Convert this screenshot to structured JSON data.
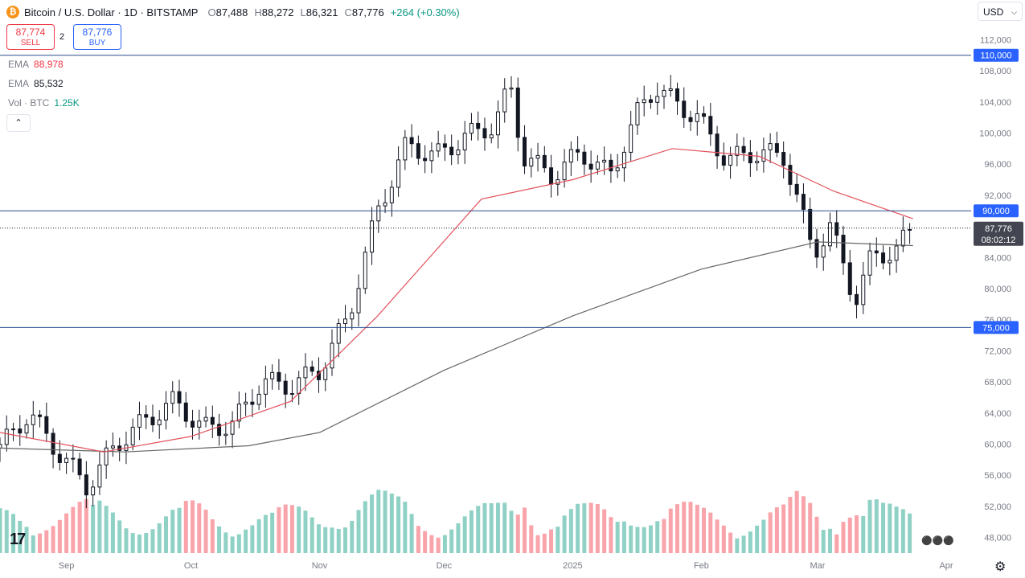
{
  "header": {
    "title": "Bitcoin / U.S. Dollar · 1D · BITSTAMP",
    "coin_symbol": "₿",
    "o_label": "O",
    "o": "87,488",
    "h_label": "H",
    "h": "88,272",
    "l_label": "L",
    "l": "86,321",
    "c_label": "C",
    "c": "87,776",
    "change": "+264 (+0.30%)"
  },
  "trade": {
    "sell_price": "87,774",
    "sell_label": "SELL",
    "spread": "2",
    "buy_price": "87,776",
    "buy_label": "BUY"
  },
  "indicators": [
    {
      "name": "EMA",
      "value": "88,978",
      "color": "#f23645"
    },
    {
      "name": "EMA",
      "value": "85,532",
      "color": "#131722"
    },
    {
      "name": "Vol · BTC",
      "value": "1.25K",
      "color": "#089981"
    }
  ],
  "collapse_glyph": "⌃",
  "currency": "USD",
  "logo_text": "17",
  "colors": {
    "up": "#089981",
    "down": "#f23645",
    "level_line": "#2a4f8f",
    "ema50": "#e2505a",
    "ema200": "#666666"
  },
  "chart_data": {
    "type": "candlestick",
    "instrument": "Bitcoin / U.S. Dollar",
    "interval": "1D",
    "exchange": "BITSTAMP",
    "ylim": [
      46000,
      114000
    ],
    "y_ticks": [
      "112,000",
      "108,000",
      "104,000",
      "100,000",
      "96,000",
      "92,000",
      "84,000",
      "80,000",
      "76,000",
      "72,000",
      "68,000",
      "64,000",
      "60,000",
      "56,000",
      "52,000",
      "48,000"
    ],
    "x_ticks": [
      {
        "label": "Sep",
        "date": "2024-09-01"
      },
      {
        "label": "Oct",
        "date": "2024-10-01"
      },
      {
        "label": "Nov",
        "date": "2024-11-01"
      },
      {
        "label": "Dec",
        "date": "2024-12-01"
      },
      {
        "label": "2025",
        "date": "2025-01-01"
      },
      {
        "label": "Feb",
        "date": "2025-02-01"
      },
      {
        "label": "Mar",
        "date": "2025-03-01"
      },
      {
        "label": "Apr",
        "date": "2025-04-01"
      }
    ],
    "x_range": [
      "2024-08-16",
      "2025-04-07"
    ],
    "horizontal_levels": [
      {
        "value": 110000,
        "label": "110,000"
      },
      {
        "value": 90000,
        "label": "90,000"
      },
      {
        "value": 75000,
        "label": "75,000"
      }
    ],
    "last_price": {
      "value": 87776,
      "label": "87,776",
      "countdown": "08:02:12"
    },
    "closes_weekly": [
      {
        "date": "2024-08-16",
        "close": 59500
      },
      {
        "date": "2024-08-23",
        "close": 64000
      },
      {
        "date": "2024-08-30",
        "close": 59000
      },
      {
        "date": "2024-09-06",
        "close": 54500
      },
      {
        "date": "2024-09-13",
        "close": 60000
      },
      {
        "date": "2024-09-20",
        "close": 63000
      },
      {
        "date": "2024-09-27",
        "close": 65500
      },
      {
        "date": "2024-10-04",
        "close": 62000
      },
      {
        "date": "2024-10-11",
        "close": 62500
      },
      {
        "date": "2024-10-18",
        "close": 68000
      },
      {
        "date": "2024-10-25",
        "close": 67500
      },
      {
        "date": "2024-11-01",
        "close": 69500
      },
      {
        "date": "2024-11-08",
        "close": 76500
      },
      {
        "date": "2024-11-15",
        "close": 90000
      },
      {
        "date": "2024-11-22",
        "close": 98500
      },
      {
        "date": "2024-11-29",
        "close": 97000
      },
      {
        "date": "2024-12-06",
        "close": 99500
      },
      {
        "date": "2024-12-13",
        "close": 101000
      },
      {
        "date": "2024-12-17",
        "close": 106000
      },
      {
        "date": "2024-12-20",
        "close": 97000
      },
      {
        "date": "2024-12-27",
        "close": 94500
      },
      {
        "date": "2025-01-03",
        "close": 97500
      },
      {
        "date": "2025-01-10",
        "close": 94500
      },
      {
        "date": "2025-01-17",
        "close": 103000
      },
      {
        "date": "2025-01-21",
        "close": 106000
      },
      {
        "date": "2025-01-24",
        "close": 104500
      },
      {
        "date": "2025-01-31",
        "close": 102000
      },
      {
        "date": "2025-02-07",
        "close": 96500
      },
      {
        "date": "2025-02-14",
        "close": 97500
      },
      {
        "date": "2025-02-21",
        "close": 97000
      },
      {
        "date": "2025-02-28",
        "close": 84500
      },
      {
        "date": "2025-03-04",
        "close": 88000
      },
      {
        "date": "2025-03-10",
        "close": 78500
      },
      {
        "date": "2025-03-14",
        "close": 84000
      },
      {
        "date": "2025-03-20",
        "close": 85000
      },
      {
        "date": "2025-03-24",
        "close": 87776
      }
    ],
    "ema_slow": [
      {
        "date": "2024-08-16",
        "value": 59500
      },
      {
        "date": "2024-09-15",
        "value": 59000
      },
      {
        "date": "2024-10-15",
        "value": 59800
      },
      {
        "date": "2024-11-01",
        "value": 61500
      },
      {
        "date": "2024-12-01",
        "value": 69500
      },
      {
        "date": "2025-01-01",
        "value": 76500
      },
      {
        "date": "2025-02-01",
        "value": 82500
      },
      {
        "date": "2025-03-01",
        "value": 86000
      },
      {
        "date": "2025-03-24",
        "value": 85532
      }
    ],
    "ema_fast": [
      {
        "date": "2024-08-16",
        "value": 61500
      },
      {
        "date": "2024-09-10",
        "value": 59000
      },
      {
        "date": "2024-10-01",
        "value": 61000
      },
      {
        "date": "2024-10-25",
        "value": 65500
      },
      {
        "date": "2024-11-15",
        "value": 76500
      },
      {
        "date": "2024-12-10",
        "value": 91500
      },
      {
        "date": "2025-01-01",
        "value": 94000
      },
      {
        "date": "2025-01-25",
        "value": 98000
      },
      {
        "date": "2025-02-15",
        "value": 97000
      },
      {
        "date": "2025-03-05",
        "value": 92500
      },
      {
        "date": "2025-03-24",
        "value": 88978
      }
    ]
  }
}
